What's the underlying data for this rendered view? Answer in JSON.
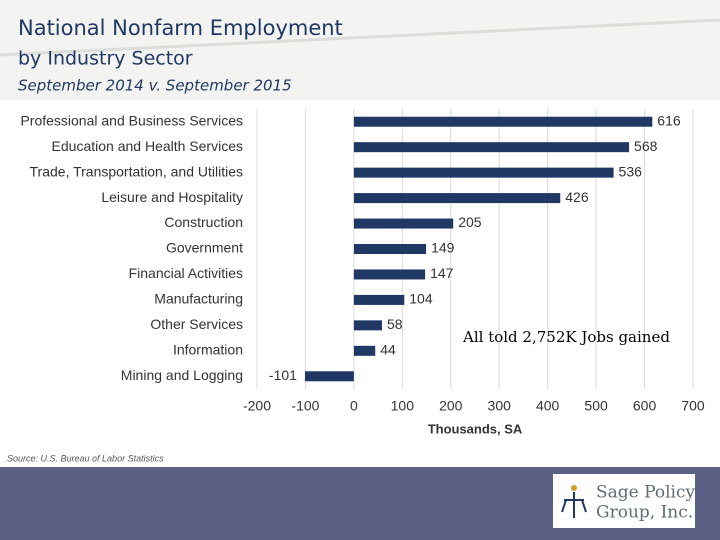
{
  "header": {
    "title": "National Nonfarm Employment",
    "subtitle": "by Industry Sector",
    "period": "September 2014 v. September 2015"
  },
  "chart_data": {
    "type": "bar",
    "orientation": "horizontal",
    "categories": [
      "Professional and Business Services",
      "Education and Health Services",
      "Trade, Transportation, and Utilities",
      "Leisure and Hospitality",
      "Construction",
      "Government",
      "Financial Activities",
      "Manufacturing",
      "Other Services",
      "Information",
      "Mining and Logging"
    ],
    "values": [
      616,
      568,
      536,
      426,
      205,
      149,
      147,
      104,
      58,
      44,
      -101
    ],
    "color": "#1f3864",
    "xlim": [
      -200,
      700
    ],
    "xticks": [
      -200,
      -100,
      0,
      100,
      200,
      300,
      400,
      500,
      600,
      700
    ],
    "x_label": "Thousands, SA",
    "grid": true,
    "annotation": "All told 2,752K Jobs gained"
  },
  "source": "Source: U.S. Bureau of Labor Statistics",
  "logo": {
    "line1": "Sage Policy",
    "line2": "Group, Inc."
  }
}
